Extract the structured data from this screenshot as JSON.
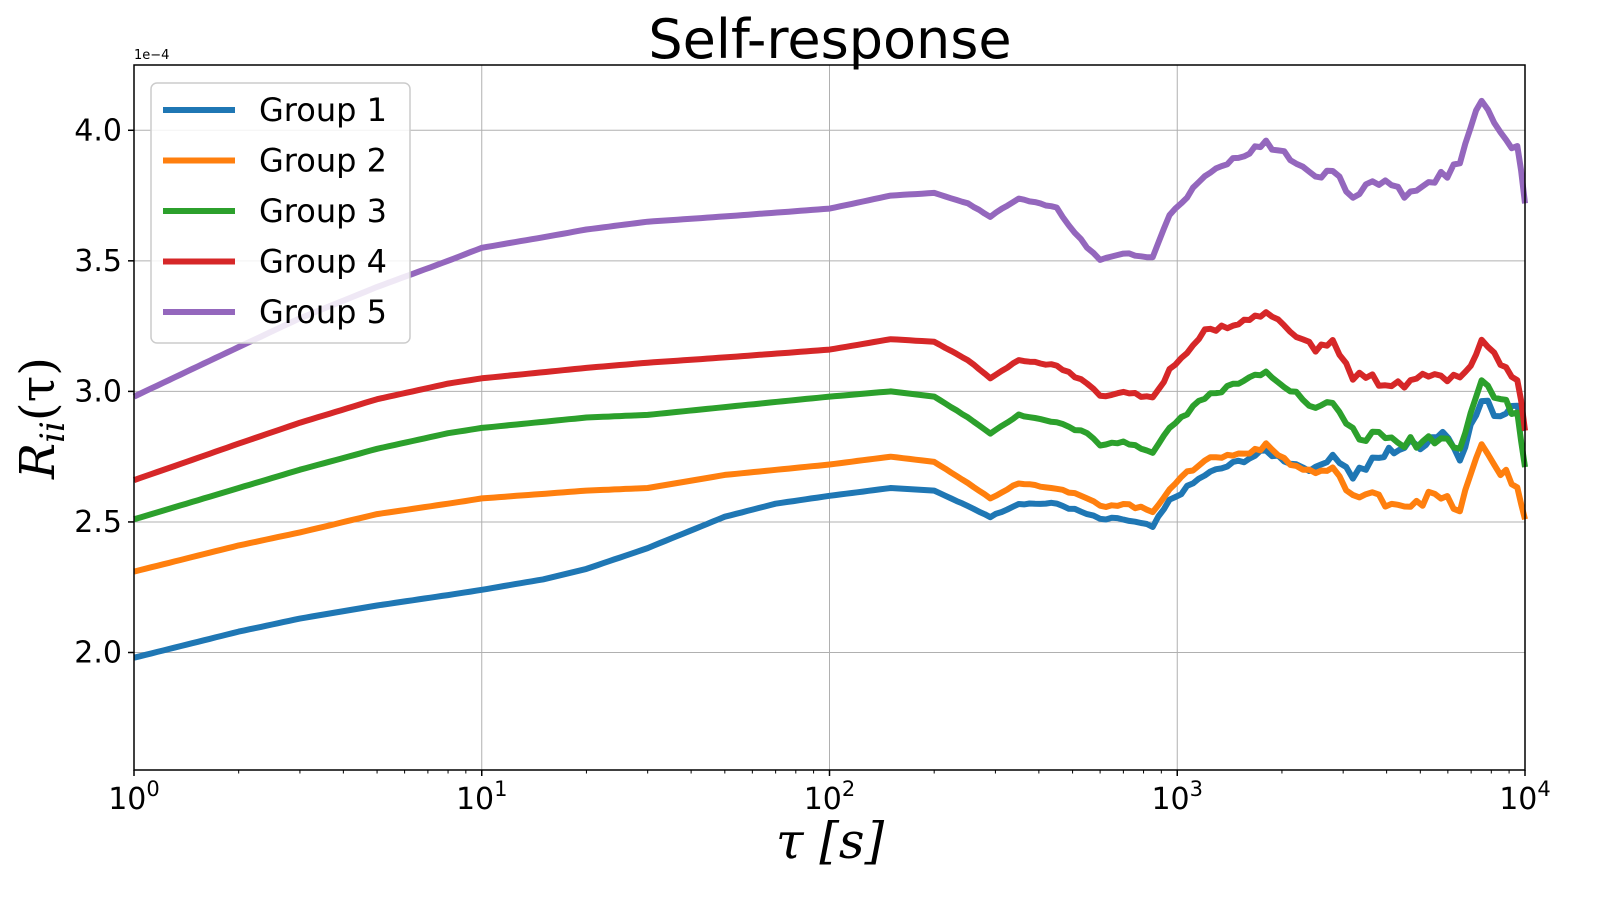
{
  "chart_data": {
    "type": "line",
    "title": "Self-response",
    "xlabel": "τ [s]",
    "ylabel": "R_ii(τ)",
    "xscale": "log",
    "xlim": [
      1,
      10000
    ],
    "ylim": [
      1.55,
      4.25
    ],
    "y_offset_label": "1e−4",
    "grid": true,
    "legend_position": "top-left",
    "x_ticks": [
      {
        "value": 1,
        "base": "10",
        "exp": "0"
      },
      {
        "value": 10,
        "base": "10",
        "exp": "1"
      },
      {
        "value": 100,
        "base": "10",
        "exp": "2"
      },
      {
        "value": 1000,
        "base": "10",
        "exp": "3"
      },
      {
        "value": 10000,
        "base": "10",
        "exp": "4"
      }
    ],
    "y_ticks": [
      {
        "value": 2.0,
        "label": "2.0"
      },
      {
        "value": 2.5,
        "label": "2.5"
      },
      {
        "value": 3.0,
        "label": "3.0"
      },
      {
        "value": 3.5,
        "label": "3.5"
      },
      {
        "value": 4.0,
        "label": "4.0"
      }
    ],
    "series": [
      {
        "name": "Group 1",
        "color": "#1f77b4",
        "points": [
          [
            1,
            1.98
          ],
          [
            2,
            2.08
          ],
          [
            3,
            2.13
          ],
          [
            5,
            2.18
          ],
          [
            8,
            2.22
          ],
          [
            10,
            2.24
          ],
          [
            15,
            2.28
          ],
          [
            20,
            2.32
          ],
          [
            30,
            2.4
          ],
          [
            50,
            2.52
          ],
          [
            70,
            2.57
          ],
          [
            100,
            2.6
          ],
          [
            150,
            2.63
          ],
          [
            200,
            2.62
          ],
          [
            250,
            2.56
          ],
          [
            290,
            2.52
          ],
          [
            350,
            2.57
          ],
          [
            450,
            2.57
          ],
          [
            550,
            2.53
          ],
          [
            600,
            2.51
          ],
          [
            700,
            2.51
          ],
          [
            850,
            2.48
          ],
          [
            950,
            2.58
          ],
          [
            1200,
            2.68
          ],
          [
            1500,
            2.73
          ],
          [
            1800,
            2.77
          ],
          [
            2200,
            2.72
          ],
          [
            2500,
            2.7
          ],
          [
            2800,
            2.76
          ],
          [
            3200,
            2.68
          ],
          [
            3800,
            2.74
          ],
          [
            4200,
            2.78
          ],
          [
            5000,
            2.8
          ],
          [
            5800,
            2.85
          ],
          [
            6500,
            2.76
          ],
          [
            7500,
            2.96
          ],
          [
            8500,
            2.91
          ],
          [
            9500,
            2.97
          ],
          [
            10000,
            2.85
          ]
        ]
      },
      {
        "name": "Group 2",
        "color": "#ff7f0e",
        "points": [
          [
            1,
            2.31
          ],
          [
            2,
            2.41
          ],
          [
            3,
            2.46
          ],
          [
            5,
            2.53
          ],
          [
            8,
            2.57
          ],
          [
            10,
            2.59
          ],
          [
            20,
            2.62
          ],
          [
            30,
            2.63
          ],
          [
            50,
            2.68
          ],
          [
            100,
            2.72
          ],
          [
            150,
            2.75
          ],
          [
            200,
            2.73
          ],
          [
            250,
            2.65
          ],
          [
            290,
            2.59
          ],
          [
            350,
            2.65
          ],
          [
            450,
            2.63
          ],
          [
            550,
            2.59
          ],
          [
            600,
            2.56
          ],
          [
            700,
            2.57
          ],
          [
            850,
            2.54
          ],
          [
            950,
            2.63
          ],
          [
            1200,
            2.74
          ],
          [
            1500,
            2.76
          ],
          [
            1800,
            2.79
          ],
          [
            2200,
            2.71
          ],
          [
            2500,
            2.69
          ],
          [
            2800,
            2.7
          ],
          [
            3200,
            2.6
          ],
          [
            3800,
            2.59
          ],
          [
            4500,
            2.57
          ],
          [
            5500,
            2.6
          ],
          [
            6500,
            2.55
          ],
          [
            7500,
            2.79
          ],
          [
            8500,
            2.7
          ],
          [
            9500,
            2.63
          ],
          [
            10000,
            2.51
          ]
        ]
      },
      {
        "name": "Group 3",
        "color": "#2ca02c",
        "points": [
          [
            1,
            2.51
          ],
          [
            2,
            2.63
          ],
          [
            3,
            2.7
          ],
          [
            5,
            2.78
          ],
          [
            8,
            2.84
          ],
          [
            10,
            2.86
          ],
          [
            20,
            2.9
          ],
          [
            30,
            2.91
          ],
          [
            50,
            2.94
          ],
          [
            100,
            2.98
          ],
          [
            150,
            3.0
          ],
          [
            200,
            2.98
          ],
          [
            250,
            2.9
          ],
          [
            290,
            2.84
          ],
          [
            350,
            2.91
          ],
          [
            450,
            2.88
          ],
          [
            550,
            2.84
          ],
          [
            600,
            2.79
          ],
          [
            700,
            2.81
          ],
          [
            850,
            2.77
          ],
          [
            950,
            2.86
          ],
          [
            1200,
            2.98
          ],
          [
            1500,
            3.03
          ],
          [
            1800,
            3.08
          ],
          [
            2200,
            2.99
          ],
          [
            2500,
            2.93
          ],
          [
            2800,
            2.96
          ],
          [
            3200,
            2.84
          ],
          [
            3800,
            2.82
          ],
          [
            4500,
            2.8
          ],
          [
            5500,
            2.82
          ],
          [
            6500,
            2.8
          ],
          [
            7500,
            3.04
          ],
          [
            8500,
            2.98
          ],
          [
            9500,
            2.9
          ],
          [
            10000,
            2.71
          ]
        ]
      },
      {
        "name": "Group 4",
        "color": "#d62728",
        "points": [
          [
            1,
            2.66
          ],
          [
            2,
            2.8
          ],
          [
            3,
            2.88
          ],
          [
            5,
            2.97
          ],
          [
            8,
            3.03
          ],
          [
            10,
            3.05
          ],
          [
            20,
            3.09
          ],
          [
            30,
            3.11
          ],
          [
            50,
            3.13
          ],
          [
            100,
            3.16
          ],
          [
            150,
            3.2
          ],
          [
            200,
            3.19
          ],
          [
            250,
            3.12
          ],
          [
            290,
            3.05
          ],
          [
            350,
            3.12
          ],
          [
            450,
            3.1
          ],
          [
            550,
            3.03
          ],
          [
            600,
            2.98
          ],
          [
            700,
            3.0
          ],
          [
            850,
            2.97
          ],
          [
            950,
            3.08
          ],
          [
            1200,
            3.23
          ],
          [
            1500,
            3.26
          ],
          [
            1800,
            3.3
          ],
          [
            2200,
            3.22
          ],
          [
            2500,
            3.16
          ],
          [
            2800,
            3.19
          ],
          [
            3200,
            3.06
          ],
          [
            3800,
            3.04
          ],
          [
            4500,
            3.03
          ],
          [
            5500,
            3.06
          ],
          [
            6500,
            3.03
          ],
          [
            7500,
            3.2
          ],
          [
            8500,
            3.1
          ],
          [
            9500,
            3.06
          ],
          [
            10000,
            2.85
          ]
        ]
      },
      {
        "name": "Group 5",
        "color": "#9467bd",
        "points": [
          [
            1,
            2.98
          ],
          [
            2,
            3.17
          ],
          [
            3,
            3.28
          ],
          [
            5,
            3.4
          ],
          [
            8,
            3.5
          ],
          [
            10,
            3.55
          ],
          [
            15,
            3.59
          ],
          [
            20,
            3.62
          ],
          [
            30,
            3.65
          ],
          [
            50,
            3.67
          ],
          [
            100,
            3.7
          ],
          [
            150,
            3.75
          ],
          [
            200,
            3.76
          ],
          [
            250,
            3.72
          ],
          [
            290,
            3.67
          ],
          [
            350,
            3.74
          ],
          [
            450,
            3.7
          ],
          [
            550,
            3.55
          ],
          [
            600,
            3.5
          ],
          [
            700,
            3.53
          ],
          [
            850,
            3.51
          ],
          [
            950,
            3.68
          ],
          [
            1200,
            3.82
          ],
          [
            1500,
            3.9
          ],
          [
            1800,
            3.95
          ],
          [
            2200,
            3.88
          ],
          [
            2500,
            3.82
          ],
          [
            2800,
            3.85
          ],
          [
            3200,
            3.74
          ],
          [
            3800,
            3.8
          ],
          [
            4500,
            3.76
          ],
          [
            5500,
            3.82
          ],
          [
            6500,
            3.86
          ],
          [
            7500,
            4.12
          ],
          [
            8500,
            3.98
          ],
          [
            9500,
            3.94
          ],
          [
            10000,
            3.72
          ]
        ]
      }
    ]
  }
}
